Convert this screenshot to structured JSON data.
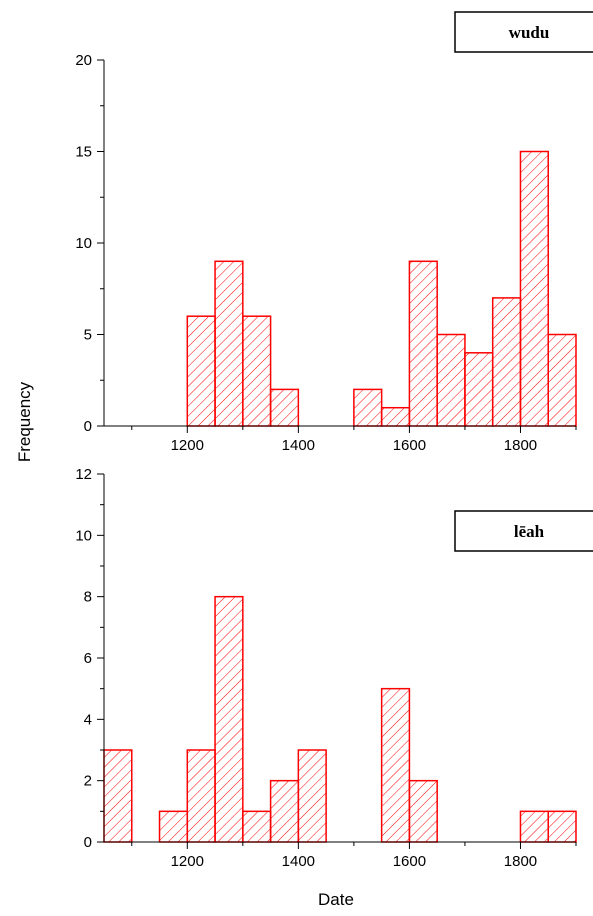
{
  "shared": {
    "xlabel": "Date",
    "ylabel": "Frequency"
  },
  "chart_data": [
    {
      "type": "bar",
      "legend": "wudu",
      "legend_position": "top-right",
      "bin_width": 50,
      "x": [
        1200,
        1250,
        1300,
        1350,
        1500,
        1550,
        1600,
        1650,
        1700,
        1750,
        1800,
        1850
      ],
      "values": [
        6,
        9,
        6,
        2,
        2,
        1,
        9,
        5,
        4,
        7,
        15,
        5
      ],
      "xlim": [
        1050,
        1900
      ],
      "ylim": [
        0,
        20
      ],
      "xticks": [
        1200,
        1400,
        1600,
        1800
      ],
      "yticks": [
        0,
        5,
        10,
        15,
        20
      ],
      "grid": false,
      "color": "#ff0000"
    },
    {
      "type": "bar",
      "legend": "lēah",
      "legend_position": "top-right",
      "bin_width": 50,
      "x": [
        1050,
        1150,
        1200,
        1250,
        1300,
        1350,
        1400,
        1550,
        1600,
        1800,
        1850
      ],
      "values": [
        3,
        1,
        3,
        8,
        1,
        2,
        3,
        5,
        2,
        1,
        1
      ],
      "xlim": [
        1050,
        1900
      ],
      "ylim": [
        0,
        12
      ],
      "xticks": [
        1200,
        1400,
        1600,
        1800
      ],
      "yticks": [
        0,
        2,
        4,
        6,
        8,
        10,
        12
      ],
      "grid": false,
      "color": "#ff0000"
    }
  ]
}
